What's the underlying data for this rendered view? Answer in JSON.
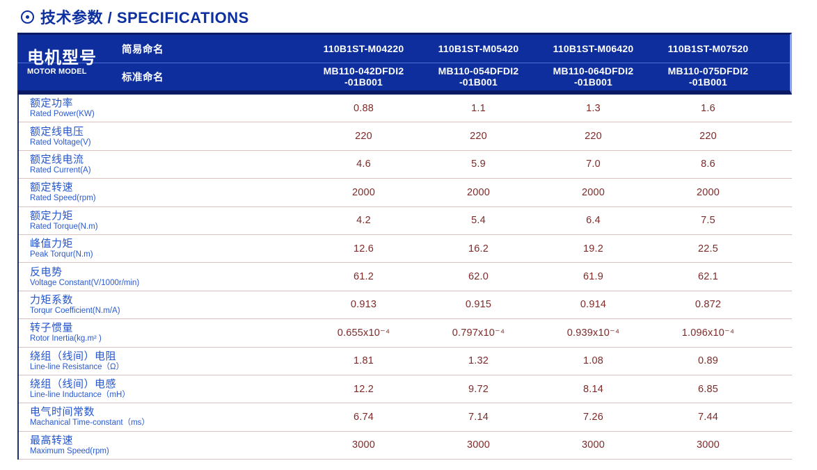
{
  "page": {
    "title": "技术参数 / SPECIFICATIONS"
  },
  "header": {
    "motor_model_zh": "电机型号",
    "motor_model_en": "MOTOR MODEL",
    "simple_name_label": "简易命名",
    "standard_name_label": "标准命名",
    "columns": [
      {
        "simple": "110B1ST-M04220",
        "standard_line1": "MB110-042DFDI2",
        "standard_line2": "-01B001"
      },
      {
        "simple": "110B1ST-M05420",
        "standard_line1": "MB110-054DFDI2",
        "standard_line2": "-01B001"
      },
      {
        "simple": "110B1ST-M06420",
        "standard_line1": "MB110-064DFDI2",
        "standard_line2": "-01B001"
      },
      {
        "simple": "110B1ST-M07520",
        "standard_line1": "MB110-075DFDI2",
        "standard_line2": "-01B001"
      }
    ]
  },
  "rows": [
    {
      "zh": "额定功率",
      "en": "Rated Power(KW)",
      "values": [
        "0.88",
        "1.1",
        "1.3",
        "1.6"
      ]
    },
    {
      "zh": "额定线电压",
      "en": "Rated Voltage(V)",
      "values": [
        "220",
        "220",
        "220",
        "220"
      ]
    },
    {
      "zh": "额定线电流",
      "en": "Rated Current(A)",
      "values": [
        "4.6",
        "5.9",
        "7.0",
        "8.6"
      ]
    },
    {
      "zh": "额定转速",
      "en": "Rated Speed(rpm)",
      "values": [
        "2000",
        "2000",
        "2000",
        "2000"
      ]
    },
    {
      "zh": "额定力矩",
      "en": "Rated Torque(N.m)",
      "values": [
        "4.2",
        "5.4",
        "6.4",
        "7.5"
      ]
    },
    {
      "zh": "峰值力矩",
      "en": "Peak Torqur(N.m)",
      "values": [
        "12.6",
        "16.2",
        "19.2",
        "22.5"
      ]
    },
    {
      "zh": "反电势",
      "en": "Voltage Constant(V/1000r/min)",
      "values": [
        "61.2",
        "62.0",
        "61.9",
        "62.1"
      ]
    },
    {
      "zh": "力矩系数",
      "en": "Torqur Coefficient(N.m/A)",
      "values": [
        "0.913",
        "0.915",
        "0.914",
        "0.872"
      ]
    },
    {
      "zh": "转子惯量",
      "en": "Rotor Inertia(kg.m² )",
      "values": [
        "0.655x10⁻⁴",
        "0.797x10⁻⁴",
        "0.939x10⁻⁴",
        "1.096x10⁻⁴"
      ]
    },
    {
      "zh": "绕组（线间）电阻",
      "en": "Line-line Resistance（Ω）",
      "values": [
        "1.81",
        "1.32",
        "1.08",
        "0.89"
      ]
    },
    {
      "zh": "绕组（线间）电感",
      "en": "Line-line Inductance（mH）",
      "values": [
        "12.2",
        "9.72",
        "8.14",
        "6.85"
      ]
    },
    {
      "zh": "电气时间常数",
      "en": "Machanical Time-constant（ms）",
      "values": [
        "6.74",
        "7.14",
        "7.26",
        "7.44"
      ]
    },
    {
      "zh": "最高转速",
      "en": "Maximum Speed(rpm)",
      "values": [
        "3000",
        "3000",
        "3000",
        "3000"
      ]
    }
  ],
  "colors": {
    "header_blue": "#0d2e9c",
    "header_edge_dark": "#0a1b63",
    "title_blue": "#0c2fa0",
    "label_blue": "#2355cd",
    "value_maroon": "#7c2a28",
    "row_separator_pink": "#d9bfbf"
  }
}
